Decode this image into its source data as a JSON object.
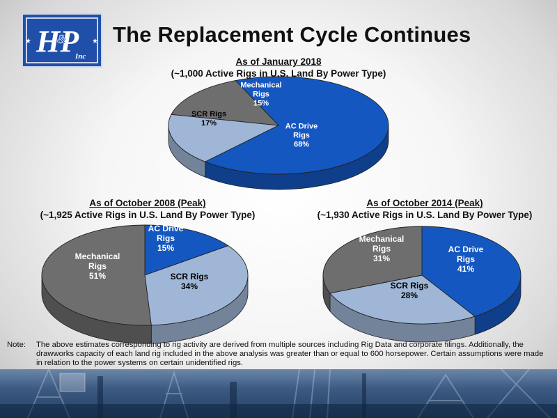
{
  "header": {
    "title": "The Replacement Cycle Continues",
    "logo_text": "H&P Inc"
  },
  "chart_data": [
    {
      "type": "pie",
      "title": "As of January 2018",
      "subtitle": "(~1,000 Active Rigs in U.S. Land By Power Type)",
      "slices": [
        {
          "label": "AC Drive Rigs",
          "value": 68,
          "display": "68%",
          "color": "#1557c0",
          "label_color": "#ffffff"
        },
        {
          "label": "SCR Rigs",
          "value": 17,
          "display": "17%",
          "color": "#9fb6d6",
          "label_color": "#000000"
        },
        {
          "label": "Mechanical Rigs",
          "value": 15,
          "display": "15%",
          "color": "#6e6e6e",
          "label_color": "#ffffff"
        }
      ]
    },
    {
      "type": "pie",
      "title": "As of October 2008 (Peak)",
      "subtitle": "(~1,925 Active Rigs in U.S. Land By Power Type)",
      "slices": [
        {
          "label": "AC Drive Rigs",
          "value": 15,
          "display": "15%",
          "color": "#1557c0",
          "label_color": "#ffffff"
        },
        {
          "label": "SCR Rigs",
          "value": 34,
          "display": "34%",
          "color": "#9fb6d6",
          "label_color": "#000000"
        },
        {
          "label": "Mechanical Rigs",
          "value": 51,
          "display": "51%",
          "color": "#6e6e6e",
          "label_color": "#ffffff"
        }
      ]
    },
    {
      "type": "pie",
      "title": "As of October 2014 (Peak)",
      "subtitle": "(~1,930 Active Rigs in U.S. Land By Power Type)",
      "slices": [
        {
          "label": "AC Drive Rigs",
          "value": 41,
          "display": "41%",
          "color": "#1557c0",
          "label_color": "#ffffff"
        },
        {
          "label": "SCR Rigs",
          "value": 28,
          "display": "28%",
          "color": "#9fb6d6",
          "label_color": "#000000"
        },
        {
          "label": "Mechanical Rigs",
          "value": 31,
          "display": "31%",
          "color": "#6e6e6e",
          "label_color": "#ffffff"
        }
      ]
    }
  ],
  "note": {
    "key": "Note:",
    "text": "The above estimates corresponding to rig activity are derived from multiple sources including Rig Data and corporate filings.  Additionally, the drawworks capacity of each land rig included in the above analysis was greater than or equal to 600 horsepower.  Certain assumptions were made in relation to the power systems on certain unidentified rigs."
  }
}
